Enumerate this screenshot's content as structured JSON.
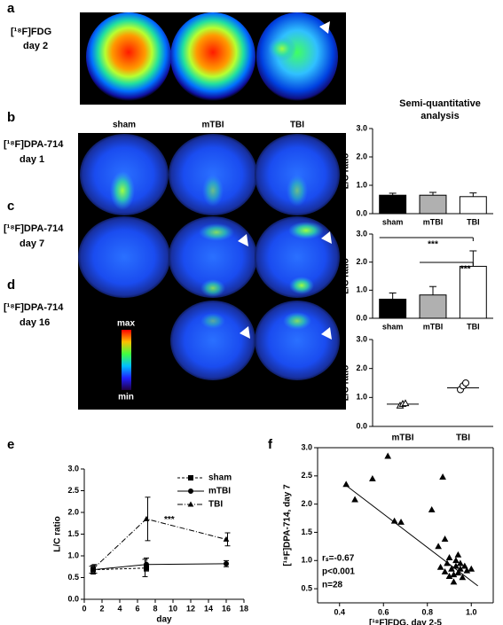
{
  "panels": {
    "letters": [
      "a",
      "b",
      "c",
      "d",
      "e",
      "f"
    ],
    "columns": [
      "sham",
      "mTBI",
      "TBI"
    ],
    "rows": [
      [
        "[¹⁸F]FDG",
        "day 2"
      ],
      [
        "[¹⁸F]DPA-714",
        "day 1"
      ],
      [
        "[¹⁸F]DPA-714",
        "day 7"
      ],
      [
        "[¹⁸F]DPA-714",
        "day 16"
      ]
    ],
    "colorbar": [
      "max",
      "min"
    ]
  },
  "chart_data": [
    {
      "type": "bar",
      "title": "Semi-quantitative analysis",
      "ylabel": "L/C ratio",
      "categories": [
        "sham",
        "mTBI",
        "TBI"
      ],
      "values": [
        0.65,
        0.65,
        0.6
      ],
      "errors": [
        0.07,
        0.1,
        0.13
      ],
      "colors": [
        "#000000",
        "#b0b0b0",
        "#ffffff"
      ],
      "ylim": [
        0,
        3
      ],
      "yticks": [
        {
          "value": 0,
          "label": "0.0"
        },
        {
          "value": 1,
          "label": "1.0"
        },
        {
          "value": 2,
          "label": "2.0"
        },
        {
          "value": 3,
          "label": "3.0"
        }
      ]
    },
    {
      "type": "bar",
      "ylabel": "L/C ratio",
      "categories": [
        "sham",
        "mTBI",
        "TBI"
      ],
      "values": [
        0.68,
        0.83,
        1.85
      ],
      "errors": [
        0.22,
        0.3,
        0.55
      ],
      "colors": [
        "#000000",
        "#b0b0b0",
        "#ffffff"
      ],
      "ylim": [
        0,
        3
      ],
      "yticks": [
        {
          "value": 0,
          "label": "0.0"
        },
        {
          "value": 1,
          "label": "1.0"
        },
        {
          "value": 2,
          "label": "2.0"
        },
        {
          "value": 3,
          "label": "3.0"
        }
      ],
      "annotations": [
        "***",
        "***"
      ]
    },
    {
      "type": "dot",
      "ylabel": "L/C ratio",
      "categories": [
        "mTBI",
        "TBI"
      ],
      "points": [
        [
          0.72,
          0.78,
          0.8
        ],
        [
          1.27,
          1.4,
          1.5
        ]
      ],
      "means": [
        0.77,
        1.33
      ],
      "markers": [
        "triangle",
        "circle"
      ],
      "ylim": [
        0,
        3
      ],
      "yticks": [
        {
          "value": 0,
          "label": "0.0"
        },
        {
          "value": 1,
          "label": "1.0"
        },
        {
          "value": 2,
          "label": "2.0"
        },
        {
          "value": 3,
          "label": "3.0"
        }
      ]
    },
    {
      "type": "line",
      "xlabel": "day",
      "ylabel": "L/C ratio",
      "x": [
        1,
        7,
        16
      ],
      "series": [
        {
          "name": "sham",
          "values": [
            0.68,
            0.72,
            null
          ],
          "errors": [
            0.08,
            0.2,
            null
          ],
          "dash": "3,2",
          "marker": "square",
          "color": "#000000"
        },
        {
          "name": "mTBI",
          "values": [
            0.68,
            0.8,
            0.82
          ],
          "errors": [
            0.1,
            0.15,
            0.07
          ],
          "dash": "none",
          "marker": "circle",
          "color": "#000000"
        },
        {
          "name": "TBI",
          "values": [
            0.7,
            1.85,
            1.38
          ],
          "errors": [
            0.1,
            0.5,
            0.15
          ],
          "dash": "6,2,1,2",
          "marker": "triangle",
          "color": "#000000"
        }
      ],
      "xlim": [
        0,
        18
      ],
      "xticks": [
        0,
        2,
        4,
        6,
        8,
        10,
        12,
        14,
        16,
        18
      ],
      "ylim": [
        0,
        3
      ],
      "yticks": [
        {
          "value": 0,
          "label": "0.0"
        },
        0.5,
        {
          "value": 1,
          "label": "1.0"
        },
        1.5,
        {
          "value": 2,
          "label": "2.0"
        },
        2.5,
        {
          "value": 3,
          "label": "3.0"
        }
      ],
      "annotations": [
        "***"
      ]
    },
    {
      "type": "scatter",
      "xlabel": "[¹⁸F]FDG, day 2-5",
      "ylabel": "[¹⁸F]DPA-714, day 7",
      "x": [
        0.43,
        0.47,
        0.55,
        0.62,
        0.65,
        0.68,
        0.82,
        0.85,
        0.87,
        0.88,
        0.88,
        0.89,
        0.9,
        0.91,
        0.92,
        0.93,
        0.93,
        0.94,
        0.94,
        0.95,
        0.96,
        0.97,
        0.98,
        1.0,
        0.9,
        0.92,
        0.95,
        0.86
      ],
      "y": [
        2.35,
        2.08,
        2.45,
        2.85,
        1.7,
        1.68,
        1.9,
        1.25,
        2.48,
        1.38,
        0.8,
        0.95,
        0.72,
        0.85,
        0.75,
        0.9,
        1.0,
        1.1,
        0.78,
        0.85,
        0.7,
        0.9,
        0.82,
        0.85,
        1.05,
        0.62,
        0.95,
        0.88
      ],
      "fit": {
        "x": [
          0.43,
          1.03
        ],
        "y": [
          2.33,
          0.55
        ]
      },
      "xlim": [
        0.3,
        1.1
      ],
      "xticks": [
        0.4,
        0.6,
        0.8,
        {
          "value": 1,
          "label": "1.0"
        }
      ],
      "ylim": [
        0.25,
        3
      ],
      "yticks": [
        0.5,
        {
          "value": 1,
          "label": "1.0"
        },
        1.5,
        {
          "value": 2,
          "label": "2.0"
        },
        2.5,
        {
          "value": 3,
          "label": "3.0"
        }
      ],
      "annotations": [
        "rₛ=-0.67",
        "p<0.001",
        "n=28"
      ]
    }
  ]
}
